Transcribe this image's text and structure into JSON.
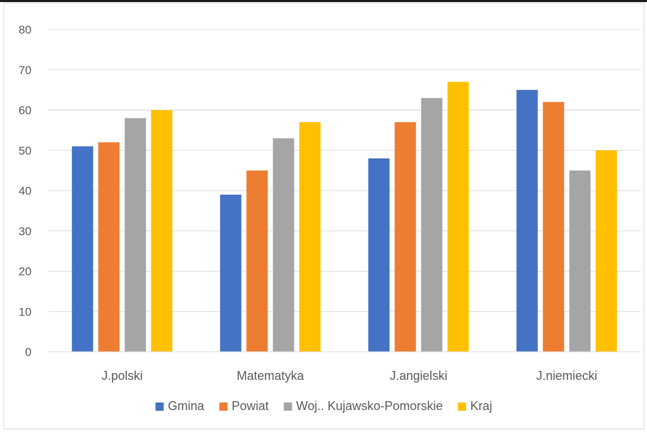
{
  "chart_data": {
    "type": "bar",
    "title": "",
    "xlabel": "",
    "ylabel": "",
    "categories": [
      "J.polski",
      "Matematyka",
      "J.angielski",
      "J.niemiecki"
    ],
    "series": [
      {
        "name": "Gmina",
        "color": "#4472c4",
        "values": [
          51,
          39,
          48,
          65
        ]
      },
      {
        "name": "Powiat",
        "color": "#ed7d31",
        "values": [
          52,
          45,
          57,
          62
        ]
      },
      {
        "name": "Woj.. Kujawsko-Pomorskie",
        "color": "#a5a5a5",
        "values": [
          58,
          53,
          63,
          45
        ]
      },
      {
        "name": "Kraj",
        "color": "#ffc000",
        "values": [
          60,
          57,
          67,
          50
        ]
      }
    ],
    "ylim": [
      0,
      80
    ],
    "yticks": [
      "0",
      "10",
      "20",
      "30",
      "40",
      "50",
      "60",
      "70",
      "80"
    ],
    "grid": true,
    "legend_position": "bottom"
  }
}
